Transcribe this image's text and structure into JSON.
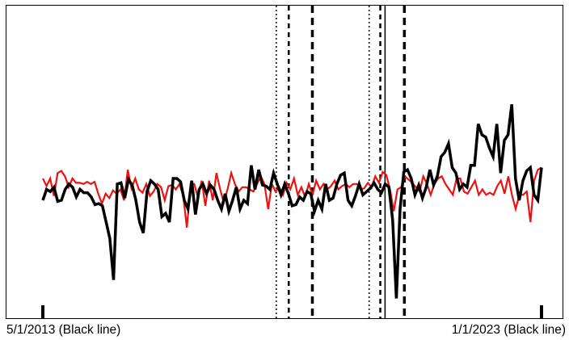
{
  "chart_data": {
    "type": "line",
    "title": "",
    "xlabel": "",
    "ylabel": "",
    "x_tick_labels": [
      {
        "text": "5/1/2013 (Black line)",
        "x_index": 0
      },
      {
        "text": "1/1/2023 (Black line)",
        "x_index": 116
      }
    ],
    "ylim": [
      -1.4,
      1.4
    ],
    "grid": false,
    "legend": "none",
    "series": [
      {
        "color": "#000000",
        "style": "solid-thick",
        "values": [
          0.0,
          0.1,
          0.08,
          0.12,
          -0.01,
          0.0,
          0.1,
          0.15,
          0.12,
          0.03,
          0.1,
          0.07,
          0.07,
          0.03,
          -0.04,
          -0.03,
          -0.05,
          -0.2,
          -0.35,
          -0.73,
          0.15,
          0.16,
          0.02,
          0.19,
          0.14,
          0.0,
          -0.2,
          -0.3,
          0.08,
          0.18,
          0.15,
          0.1,
          -0.15,
          -0.12,
          -0.2,
          0.2,
          0.2,
          0.17,
          0.0,
          -0.08,
          0.18,
          -0.13,
          0.1,
          0.15,
          0.06,
          0.14,
          0.1,
          0.0,
          -0.08,
          0.06,
          -0.1,
          0.0,
          0.12,
          -0.08,
          0.0,
          -0.03,
          0.32,
          0.1,
          0.28,
          0.14,
          0.13,
          0.1,
          0.25,
          0.15,
          0.05,
          0.15,
          0.06,
          -0.05,
          -0.04,
          0.03,
          0.0,
          0.08,
          0.06,
          -0.1,
          0.0,
          -0.08,
          0.15,
          0.0,
          0.02,
          0.15,
          0.23,
          0.25,
          0.0,
          -0.05,
          0.04,
          0.15,
          0.05,
          0.08,
          0.11,
          0.16,
          0.1,
          0.07,
          0.15,
          0.12,
          -0.18,
          -0.9,
          -0.08,
          0.26,
          0.28,
          0.2,
          0.05,
          0.14,
          0.02,
          0.12,
          0.28,
          0.14,
          0.22,
          0.4,
          0.44,
          0.52,
          0.3,
          0.25,
          0.1,
          0.15,
          0.12,
          0.32,
          0.32,
          0.7,
          0.6,
          0.58,
          0.48,
          0.4,
          0.7,
          0.25,
          0.55,
          0.6,
          0.88,
          0.2,
          0.0,
          0.18,
          0.27,
          0.3,
          0.05,
          0.0,
          0.3
        ]
      },
      {
        "color": "#ee1111",
        "style": "solid-thin",
        "values": [
          0.2,
          0.13,
          0.2,
          0.04,
          0.25,
          0.27,
          0.22,
          0.12,
          0.2,
          0.16,
          0.16,
          0.15,
          0.17,
          0.15,
          0.17,
          0.06,
          -0.03,
          0.06,
          0.02,
          0.09,
          0.06,
          0.1,
          0.0,
          0.28,
          0.11,
          0.2,
          0.1,
          0.07,
          0.15,
          0.04,
          0.08,
          0.15,
          0.12,
          0.0,
          0.13,
          0.14,
          0.1,
          0.15,
          0.04,
          -0.25,
          0.15,
          0.15,
          0.02,
          0.18,
          -0.05,
          0.18,
          0.0,
          0.25,
          0.1,
          -0.02,
          0.1,
          0.25,
          0.15,
          0.08,
          0.12,
          0.12,
          0.1,
          0.08,
          0.15,
          0.22,
          0.15,
          -0.08,
          0.15,
          0.08,
          0.12,
          0.05,
          0.16,
          0.1,
          0.2,
          0.05,
          0.12,
          0.03,
          0.15,
          0.05,
          0.18,
          0.1,
          0.15,
          0.1,
          0.13,
          0.18,
          0.1,
          0.13,
          0.15,
          0.12,
          0.15,
          0.15,
          0.1,
          0.11,
          0.16,
          0.12,
          0.22,
          0.16,
          0.26,
          0.23,
          0.1,
          -0.1,
          0.1,
          0.12,
          0.22,
          0.19,
          0.16,
          0.12,
          0.08,
          0.22,
          0.15,
          0.05,
          0.15,
          0.2,
          0.22,
          0.15,
          0.1,
          0.05,
          0.2,
          0.2,
          0.08,
          0.06,
          0.12,
          0.18,
          0.05,
          0.1,
          0.05,
          0.07,
          0.05,
          0.13,
          0.18,
          0.06,
          0.22,
          0.05,
          -0.08,
          0.05,
          0.05,
          0.08,
          -0.2,
          0.18,
          0.28,
          0.3
        ]
      }
    ],
    "vertical_lines": [
      {
        "x_index": 54.3,
        "style": "dotted"
      },
      {
        "x_index": 57.2,
        "style": "dashed"
      },
      {
        "x_index": 62.7,
        "style": "dashed-thick"
      },
      {
        "x_index": 75.9,
        "style": "dotted"
      },
      {
        "x_index": 78.5,
        "style": "dashed"
      },
      {
        "x_index": 79.6,
        "style": "solid"
      },
      {
        "x_index": 84.1,
        "style": "dashed-thick"
      }
    ]
  }
}
